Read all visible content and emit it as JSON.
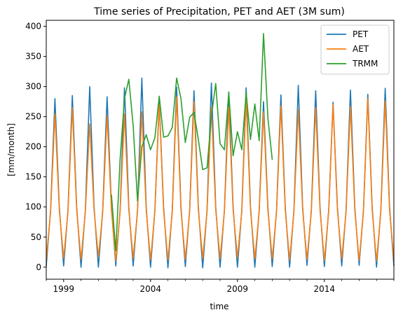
{
  "chart_data": {
    "type": "line",
    "title": "Time series of Precipitation, PET and AET (3M sum)",
    "xlabel": "time",
    "ylabel": "[mm/month]",
    "xlim": [
      1998.0,
      2018.0
    ],
    "ylim": [
      -20,
      410
    ],
    "x_ticks": [
      1999,
      2004,
      2009,
      2014
    ],
    "y_ticks": [
      0,
      50,
      100,
      150,
      200,
      250,
      300,
      350,
      400
    ],
    "grid": false,
    "legend_position": "top-right",
    "series": [
      {
        "name": "PET",
        "color": "#1f77b4",
        "x": [
          1998.0,
          1998.25,
          1998.5,
          1998.75,
          1999.0,
          1999.25,
          1999.5,
          1999.75,
          2000.0,
          2000.25,
          2000.5,
          2000.75,
          2001.0,
          2001.25,
          2001.5,
          2001.75,
          2002.0,
          2002.25,
          2002.5,
          2002.75,
          2003.0,
          2003.25,
          2003.5,
          2003.75,
          2004.0,
          2004.25,
          2004.5,
          2004.75,
          2005.0,
          2005.25,
          2005.5,
          2005.75,
          2006.0,
          2006.25,
          2006.5,
          2006.75,
          2007.0,
          2007.25,
          2007.5,
          2007.75,
          2008.0,
          2008.25,
          2008.5,
          2008.75,
          2009.0,
          2009.25,
          2009.5,
          2009.75,
          2010.0,
          2010.25,
          2010.5,
          2010.75,
          2011.0,
          2011.25,
          2011.5,
          2011.75,
          2012.0,
          2012.25,
          2012.5,
          2012.75,
          2013.0,
          2013.25,
          2013.5,
          2013.75,
          2014.0,
          2014.25,
          2014.5,
          2014.75,
          2015.0,
          2015.25,
          2015.5,
          2015.75,
          2016.0,
          2016.25,
          2016.5,
          2016.75,
          2017.0,
          2017.25,
          2017.5,
          2017.75,
          2018.0
        ],
        "values": [
          2,
          95,
          280,
          100,
          2,
          95,
          285,
          100,
          0,
          95,
          300,
          100,
          0,
          95,
          283,
          100,
          2,
          95,
          298,
          100,
          2,
          95,
          314,
          100,
          0,
          95,
          276,
          100,
          -1,
          95,
          299,
          100,
          1,
          95,
          293,
          100,
          -1,
          95,
          306,
          100,
          0,
          95,
          291,
          100,
          0,
          95,
          298,
          100,
          0,
          95,
          275,
          100,
          1,
          95,
          286,
          100,
          0,
          95,
          302,
          100,
          3,
          95,
          293,
          100,
          1,
          95,
          274,
          100,
          2,
          95,
          294,
          100,
          3,
          95,
          287,
          100,
          0,
          95,
          297,
          100,
          2
        ]
      },
      {
        "name": "AET",
        "color": "#ff7f0e",
        "x": [
          1998.0,
          1998.25,
          1998.5,
          1998.75,
          1999.0,
          1999.25,
          1999.5,
          1999.75,
          2000.0,
          2000.25,
          2000.5,
          2000.75,
          2001.0,
          2001.25,
          2001.5,
          2001.75,
          2002.0,
          2002.25,
          2002.5,
          2002.75,
          2003.0,
          2003.25,
          2003.5,
          2003.75,
          2004.0,
          2004.25,
          2004.5,
          2004.75,
          2005.0,
          2005.25,
          2005.5,
          2005.75,
          2006.0,
          2006.25,
          2006.5,
          2006.75,
          2007.0,
          2007.25,
          2007.5,
          2007.75,
          2008.0,
          2008.25,
          2008.5,
          2008.75,
          2009.0,
          2009.25,
          2009.5,
          2009.75,
          2010.0,
          2010.25,
          2010.5,
          2010.75,
          2011.0,
          2011.25,
          2011.5,
          2011.75,
          2012.0,
          2012.25,
          2012.5,
          2012.75,
          2013.0,
          2013.25,
          2013.5,
          2013.75,
          2014.0,
          2014.25,
          2014.5,
          2014.75,
          2015.0,
          2015.25,
          2015.5,
          2015.75,
          2016.0,
          2016.25,
          2016.5,
          2016.75,
          2017.0,
          2017.25,
          2017.5,
          2017.75,
          2018.0
        ],
        "values": [
          12,
          92,
          255,
          95,
          15,
          92,
          265,
          95,
          13,
          92,
          238,
          95,
          17,
          92,
          252,
          95,
          10,
          92,
          255,
          95,
          15,
          92,
          258,
          95,
          12,
          92,
          270,
          95,
          12,
          92,
          283,
          95,
          13,
          92,
          275,
          95,
          15,
          92,
          265,
          95,
          14,
          92,
          266,
          95,
          16,
          92,
          280,
          95,
          14,
          92,
          258,
          95,
          14,
          92,
          268,
          95,
          12,
          92,
          262,
          95,
          13,
          92,
          265,
          95,
          11,
          92,
          270,
          95,
          14,
          92,
          267,
          95,
          11,
          92,
          280,
          95,
          10,
          92,
          276,
          95,
          12
        ]
      },
      {
        "name": "TRMM",
        "color": "#2ca02c",
        "x": [
          2001.75,
          2002.0,
          2002.25,
          2002.5,
          2002.75,
          2003.0,
          2003.25,
          2003.5,
          2003.75,
          2004.0,
          2004.25,
          2004.5,
          2004.75,
          2005.0,
          2005.25,
          2005.5,
          2005.75,
          2006.0,
          2006.25,
          2006.5,
          2006.75,
          2007.0,
          2007.25,
          2007.5,
          2007.75,
          2008.0,
          2008.25,
          2008.5,
          2008.75,
          2009.0,
          2009.25,
          2009.5,
          2009.75,
          2010.0,
          2010.25,
          2010.5,
          2010.75,
          2011.0
        ],
        "values": [
          120,
          27,
          180,
          280,
          312,
          235,
          110,
          200,
          220,
          195,
          215,
          284,
          216,
          218,
          232,
          314,
          280,
          207,
          249,
          257,
          212,
          162,
          165,
          250,
          305,
          205,
          195,
          290,
          185,
          225,
          195,
          290,
          212,
          271,
          210,
          388,
          248,
          179
        ]
      }
    ]
  }
}
